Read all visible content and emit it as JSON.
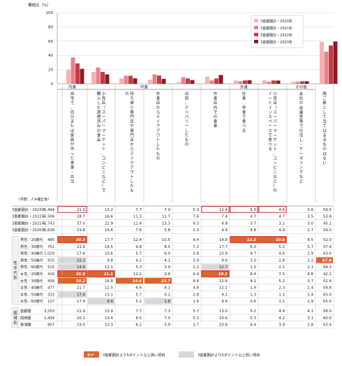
{
  "chart_data": {
    "type": "bar",
    "ylabel": "構成比（%）",
    "ylim": [
      0,
      100
    ],
    "yticks": [
      0,
      20,
      40,
      60,
      80,
      100
    ],
    "legend_position": "top-right",
    "colors": [
      "#f4b3b3",
      "#e5828b",
      "#c43c47",
      "#8e1b24"
    ],
    "series": [
      {
        "name": "3首都圏計・2020年",
        "values": [
          19.8,
          16.6,
          7.6,
          5.8,
          2.3,
          9.9,
          4.8,
          4.9,
          2.7,
          59.0
        ]
      },
      {
        "name": "3首都圏計・2021年",
        "values": [
          37.0,
          22.9,
          11.4,
          13.3,
          9.3,
          4.8,
          3.7,
          3.1,
          3.0,
          45.1
        ]
      },
      {
        "name": "3首都圏計・2022年",
        "values": [
          28.7,
          16.6,
          11.3,
          11.7,
          7.6,
          7.4,
          4.7,
          4.7,
          3.5,
          53.8
        ]
      },
      {
        "name": "3首都圏計・2023年",
        "values": [
          21.0,
          13.2,
          7.7,
          7.0,
          5.3,
          12.4,
          5.0,
          4.6,
          3.6,
          59.5
        ]
      }
    ],
    "groups": [
      {
        "label": "内食",
        "span": 1
      },
      {
        "label": "中食",
        "span": 4
      },
      {
        "label": "外食",
        "span": 3
      },
      {
        "label": "その他",
        "span": 1
      }
    ],
    "categories": [
      "自宅で、自分または家族が作った食事・弁当",
      "小売店（スーパーマーケット、コンビニなど）で購入した調理済みの食品",
      "持ち帰り専門店や専門店からテイクアウトしたもの",
      "外食店からテイクアウトしたもの",
      "出前、デリバリーしたもの",
      "外食店内での食事",
      "社食、学食で食べる",
      "小売店（スーパーマーケット、コンビニなど）のイートインスペースで食べる",
      "会社の会議室等で仕出し・ケータリングなど",
      "晩ご飯として当てはまるものはない"
    ]
  },
  "table": {
    "count_label": "（件数：人※補正後）",
    "rows": [
      {
        "label": "3首都圏計・2023年",
        "n": "5,494",
        "v": [
          "21.0",
          "13.2",
          "7.7",
          "7.0",
          "5.3",
          "12.4",
          "5.0",
          "4.6",
          "3.6",
          "59.5"
        ]
      },
      {
        "label": "3首都圏計・2022年",
        "n": "5,506",
        "v": [
          "28.7",
          "16.6",
          "11.3",
          "11.7",
          "7.6",
          "7.4",
          "4.7",
          "4.7",
          "3.5",
          "53.8"
        ]
      },
      {
        "label": "3首都圏計・2021年",
        "n": "5,743",
        "v": [
          "37.0",
          "22.9",
          "11.4",
          "13.3",
          "9.3",
          "4.8",
          "3.7",
          "3.1",
          "3.0",
          "45.1"
        ]
      },
      {
        "label": "3首都圏計・2020年",
        "n": "5,638",
        "v": [
          "19.8",
          "16.6",
          "7.6",
          "5.8",
          "2.3",
          "9.9",
          "4.8",
          "4.9",
          "2.7",
          "59.0"
        ]
      },
      {
        "label": "男性／20歳代",
        "n": "485",
        "v": [
          "30.3",
          "17.7",
          "12.4",
          "10.5",
          "9.4",
          "14.8",
          "11.2",
          "10.6",
          "8.5",
          "52.0"
        ]
      },
      {
        "label": "男性／30歳代",
        "n": "751",
        "v": [
          "21.6",
          "14.5",
          "9.8",
          "8.5",
          "7.2",
          "17.7",
          "6.0",
          "5.2",
          "5.7",
          "57.9"
        ]
      },
      {
        "label": "男性／40歳代",
        "n": "1,029",
        "v": [
          "17.6",
          "10.6",
          "5.7",
          "6.0",
          "3.8",
          "10.9",
          "4.7",
          "4.6",
          "2.9",
          "63.0"
        ]
      },
      {
        "label": "男性／50歳代",
        "n": "915",
        "v": [
          "15.3",
          "9.8",
          "4.1",
          "4.1",
          "2.9",
          "9.8",
          "3.0",
          "2.8",
          "2.2",
          "67.0"
        ]
      },
      {
        "label": "男性／60歳代",
        "n": "515",
        "v": [
          "14.9",
          "11.1",
          "5.3",
          "3.9",
          "2.2",
          "12.7",
          "1.0",
          "2.1",
          "2.1",
          "64.3"
        ]
      },
      {
        "label": "女性／20歳代",
        "n": "416",
        "v": [
          "35.0",
          "21.1",
          "11.2",
          "9.8",
          "9.9",
          "19.1",
          "8.4",
          "7.5",
          "6.8",
          "42.1"
        ]
      },
      {
        "label": "女性／30歳代",
        "n": "458",
        "v": [
          "30.2",
          "16.8",
          "14.6",
          "13.7",
          "8.6",
          "12.6",
          "4.1",
          "5.2",
          "3.7",
          "52.6"
        ]
      },
      {
        "label": "女性／40歳代",
        "n": "477",
        "v": [
          "21.7",
          "12.5",
          "6.6",
          "8.1",
          "4.8",
          "12.1",
          "1.9",
          "2.3",
          "2.4",
          "58.8"
        ]
      },
      {
        "label": "女性／50歳代",
        "n": "333",
        "v": [
          "17.4",
          "13.1",
          "5.7",
          "6.2",
          "2.8",
          "9.1",
          "1.3",
          "1.1",
          "1.4",
          "63.0"
        ]
      },
      {
        "label": "女性／60歳代",
        "n": "117",
        "v": [
          "17.4",
          "8.6",
          "5.2",
          "1.8",
          "1.6",
          "9.6",
          "0.6",
          "1.1",
          "1.9",
          "65.0"
        ]
      },
      {
        "label": "首都圏",
        "n": "3,253",
        "v": [
          "21.9",
          "13.9",
          "7.7",
          "7.3",
          "5.7",
          "13.0",
          "5.2",
          "4.9",
          "4.1",
          "58.0"
        ]
      },
      {
        "label": "関西圏",
        "n": "1,434",
        "v": [
          "20.1",
          "13.4",
          "8.5",
          "7.0",
          "5.1",
          "10.6",
          "5.3",
          "4.2",
          "3.1",
          "60.0"
        ]
      },
      {
        "label": "東海圏",
        "n": "807",
        "v": [
          "19.0",
          "10.3",
          "6.2",
          "5.9",
          "3.7",
          "10.8",
          "4.4",
          "3.9",
          "2.8",
          "63.4"
        ]
      }
    ],
    "side_labels": [
      {
        "text": "性年代別",
        "rows": [
          4,
          13
        ]
      },
      {
        "text": "圏域別",
        "rows": [
          14,
          16
        ]
      }
    ],
    "highlight_dark": [
      [
        4,
        0
      ],
      [
        4,
        6
      ],
      [
        4,
        7
      ],
      [
        9,
        0
      ],
      [
        9,
        1
      ],
      [
        9,
        5
      ],
      [
        10,
        0
      ],
      [
        10,
        2
      ],
      [
        10,
        3
      ],
      [
        7,
        9
      ]
    ],
    "highlight_light": [
      [
        7,
        0
      ],
      [
        8,
        0
      ],
      [
        8,
        5
      ],
      [
        12,
        0
      ],
      [
        13,
        1
      ],
      [
        13,
        3
      ]
    ],
    "box_red": [
      [
        0,
        0
      ],
      [
        0,
        5
      ],
      [
        0,
        6
      ],
      [
        0,
        7
      ],
      [
        4,
        0
      ],
      [
        4,
        6
      ],
      [
        4,
        7
      ],
      [
        9,
        0
      ],
      [
        9,
        1
      ],
      [
        9,
        5
      ]
    ],
    "note_dark_label": "3首都圏計より5ポイント以上高い項目",
    "note_light_label": "3首都圏計より5ポイント以上低い項目",
    "note_dark_sample": "ネナ",
    "colors": {
      "highlight_dark": "#d9662c",
      "highlight_light": "#d8d8d8",
      "box_red": "#e03030"
    }
  }
}
